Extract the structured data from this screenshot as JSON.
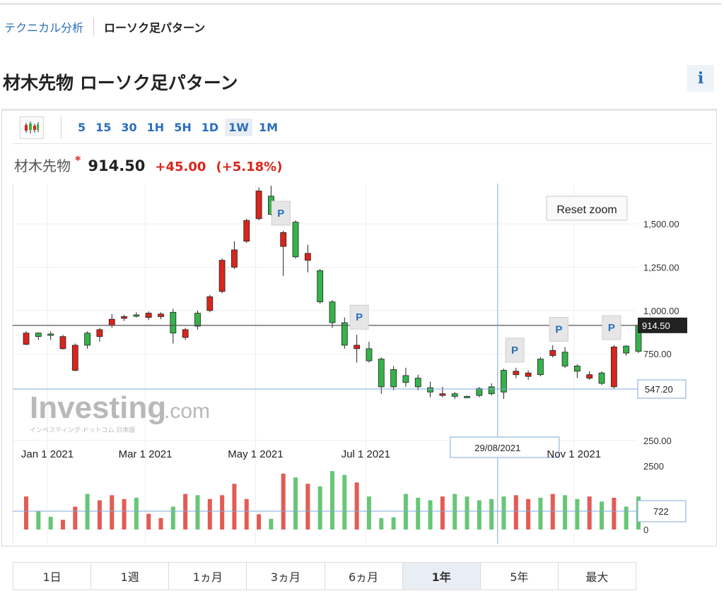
{
  "breadcrumb": {
    "parent": "テクニカル分析",
    "current": "ローソク足パターン"
  },
  "page": {
    "title": "材木先物 ローソク足パターン",
    "info_icon": "i"
  },
  "toolbar": {
    "chart_type_icon": "candlestick-icon",
    "timeframes": [
      "5",
      "15",
      "30",
      "1H",
      "5H",
      "1D",
      "1W",
      "1M"
    ],
    "active_timeframe": "1W"
  },
  "quote": {
    "name": "材木先物",
    "star": "*",
    "price": "914.50",
    "change": "+45.00",
    "change_pct": "(+5.18%)"
  },
  "reset_zoom_label": "Reset zoom",
  "watermark": {
    "brand": "Investing",
    "suffix": ".com",
    "tagline": "インベスティング·ドットコム 日本版"
  },
  "crosshair": {
    "date_label": "29/08/2021",
    "price_label": "547.20",
    "volume_label": "722"
  },
  "last_price_label": "914.50",
  "pattern_marker_label": "P",
  "ranges": [
    "1日",
    "1週",
    "1ヵ月",
    "3ヵ月",
    "6ヵ月",
    "1年",
    "5年",
    "最大"
  ],
  "active_range": "1年",
  "colors": {
    "up": "#35b34a",
    "down": "#d9251c",
    "accent": "#2a6ebb",
    "crosshair": "#7fa9d8"
  },
  "chart_data": {
    "type": "candlestick",
    "price_axis": {
      "min": 250,
      "max": 1700,
      "ticks": [
        "1,500.00",
        "1,250.00",
        "1,000.00",
        "750.00",
        "250.00"
      ],
      "tick_values": [
        1500,
        1250,
        1000,
        750,
        250
      ]
    },
    "volume_axis": {
      "max": 2500,
      "ticks": [
        "2500",
        "0"
      ],
      "tick_values": [
        2500,
        0
      ]
    },
    "x_labels": [
      "Jan 1 2021",
      "Mar 1 2021",
      "May 1 2021",
      "Jul 1 2021",
      "Nov 1 2021"
    ],
    "x_label_index": [
      0,
      8,
      17,
      26,
      43
    ],
    "candles": [
      {
        "o": 870,
        "c": 805,
        "h": 880,
        "l": 800,
        "v": 1300
      },
      {
        "o": 850,
        "c": 870,
        "h": 875,
        "l": 830,
        "v": 720
      },
      {
        "o": 865,
        "c": 865,
        "h": 880,
        "l": 830,
        "v": 500
      },
      {
        "o": 850,
        "c": 780,
        "h": 860,
        "l": 775,
        "v": 380
      },
      {
        "o": 800,
        "c": 655,
        "h": 810,
        "l": 650,
        "v": 900
      },
      {
        "o": 800,
        "c": 870,
        "h": 880,
        "l": 780,
        "v": 1400
      },
      {
        "o": 890,
        "c": 850,
        "h": 900,
        "l": 820,
        "v": 1150
      },
      {
        "o": 950,
        "c": 915,
        "h": 980,
        "l": 900,
        "v": 1350
      },
      {
        "o": 965,
        "c": 955,
        "h": 975,
        "l": 940,
        "v": 1200
      },
      {
        "o": 970,
        "c": 975,
        "h": 990,
        "l": 960,
        "v": 1250
      },
      {
        "o": 985,
        "c": 960,
        "h": 995,
        "l": 945,
        "v": 620
      },
      {
        "o": 980,
        "c": 965,
        "h": 990,
        "l": 950,
        "v": 450
      },
      {
        "o": 870,
        "c": 990,
        "h": 1010,
        "l": 810,
        "v": 900
      },
      {
        "o": 890,
        "c": 845,
        "h": 900,
        "l": 830,
        "v": 1400
      },
      {
        "o": 910,
        "c": 985,
        "h": 1000,
        "l": 890,
        "v": 1350
      },
      {
        "o": 1080,
        "c": 1000,
        "h": 1090,
        "l": 990,
        "v": 1200
      },
      {
        "o": 1290,
        "c": 1110,
        "h": 1300,
        "l": 1100,
        "v": 1350
      },
      {
        "o": 1350,
        "c": 1250,
        "h": 1400,
        "l": 1240,
        "v": 1800
      },
      {
        "o": 1520,
        "c": 1400,
        "h": 1530,
        "l": 1390,
        "v": 1200
      },
      {
        "o": 1690,
        "c": 1530,
        "h": 1710,
        "l": 1520,
        "v": 600
      },
      {
        "o": 1555,
        "c": 1660,
        "h": 1720,
        "l": 1550,
        "v": 420
      },
      {
        "o": 1450,
        "c": 1370,
        "h": 1460,
        "l": 1200,
        "v": 2200
      },
      {
        "o": 1310,
        "c": 1510,
        "h": 1520,
        "l": 1300,
        "v": 2050
      },
      {
        "o": 1330,
        "c": 1290,
        "h": 1380,
        "l": 1220,
        "v": 1800
      },
      {
        "o": 1050,
        "c": 1230,
        "h": 1240,
        "l": 1040,
        "v": 1700
      },
      {
        "o": 930,
        "c": 1050,
        "h": 1060,
        "l": 900,
        "v": 2300
      },
      {
        "o": 800,
        "c": 930,
        "h": 960,
        "l": 780,
        "v": 2150
      },
      {
        "o": 800,
        "c": 780,
        "h": 860,
        "l": 700,
        "v": 1850
      },
      {
        "o": 710,
        "c": 780,
        "h": 820,
        "l": 700,
        "v": 1300
      },
      {
        "o": 560,
        "c": 720,
        "h": 730,
        "l": 520,
        "v": 450
      },
      {
        "o": 560,
        "c": 660,
        "h": 680,
        "l": 540,
        "v": 480
      },
      {
        "o": 585,
        "c": 625,
        "h": 670,
        "l": 560,
        "v": 1400
      },
      {
        "o": 560,
        "c": 610,
        "h": 630,
        "l": 540,
        "v": 1250
      },
      {
        "o": 530,
        "c": 555,
        "h": 590,
        "l": 500,
        "v": 1150
      },
      {
        "o": 520,
        "c": 510,
        "h": 560,
        "l": 500,
        "v": 1300
      },
      {
        "o": 505,
        "c": 520,
        "h": 530,
        "l": 490,
        "v": 1400
      },
      {
        "o": 505,
        "c": 505,
        "h": 510,
        "l": 500,
        "v": 1300
      },
      {
        "o": 510,
        "c": 550,
        "h": 560,
        "l": 500,
        "v": 1150
      },
      {
        "o": 520,
        "c": 560,
        "h": 580,
        "l": 510,
        "v": 1200
      },
      {
        "o": 530,
        "c": 655,
        "h": 665,
        "l": 490,
        "v": 1300
      },
      {
        "o": 650,
        "c": 630,
        "h": 670,
        "l": 610,
        "v": 1350
      },
      {
        "o": 640,
        "c": 620,
        "h": 655,
        "l": 600,
        "v": 1200
      },
      {
        "o": 630,
        "c": 720,
        "h": 730,
        "l": 620,
        "v": 1250
      },
      {
        "o": 770,
        "c": 740,
        "h": 800,
        "l": 730,
        "v": 1400
      },
      {
        "o": 680,
        "c": 760,
        "h": 790,
        "l": 670,
        "v": 1350
      },
      {
        "o": 650,
        "c": 680,
        "h": 690,
        "l": 610,
        "v": 1200
      },
      {
        "o": 630,
        "c": 610,
        "h": 650,
        "l": 600,
        "v": 1300
      },
      {
        "o": 580,
        "c": 640,
        "h": 650,
        "l": 570,
        "v": 1100
      },
      {
        "o": 790,
        "c": 560,
        "h": 800,
        "l": 550,
        "v": 1250
      },
      {
        "o": 755,
        "c": 795,
        "h": 800,
        "l": 740,
        "v": 900
      },
      {
        "o": 765,
        "c": 915,
        "h": 930,
        "l": 755,
        "v": 1300
      }
    ],
    "pattern_markers": [
      20.8,
      27.2,
      39.9,
      43.5,
      47.8
    ],
    "crosshair_index": 38.5,
    "crosshair_price": 547.2,
    "crosshair_volume": 722,
    "last_price": 914.5
  }
}
